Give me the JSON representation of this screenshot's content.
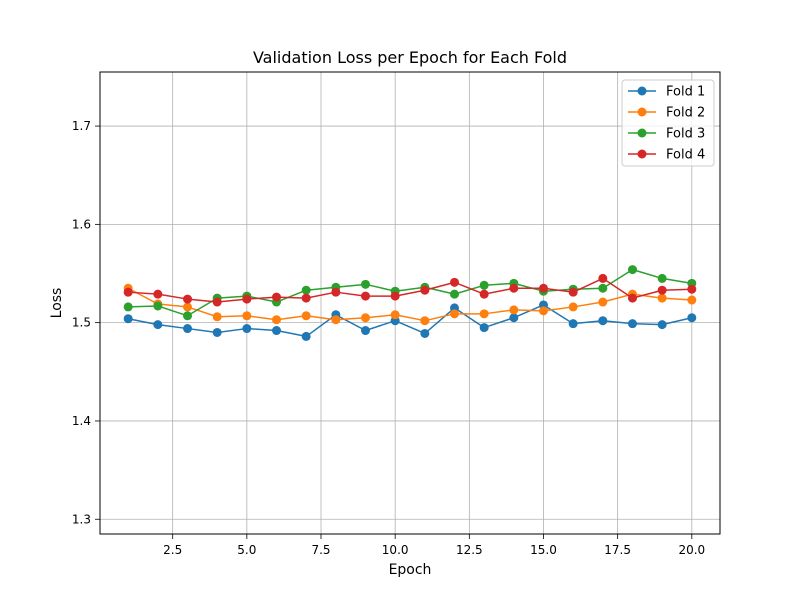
{
  "chart_data": {
    "type": "line",
    "title": "Validation Loss per Epoch for Each Fold",
    "xlabel": "Epoch",
    "ylabel": "Loss",
    "xlim": [
      0.05,
      20.95
    ],
    "ylim": [
      1.285,
      1.755
    ],
    "x_ticks": [
      2.5,
      5.0,
      7.5,
      10.0,
      12.5,
      15.0,
      17.5,
      20.0
    ],
    "x_tick_labels": [
      "2.5",
      "5.0",
      "7.5",
      "10.0",
      "12.5",
      "15.0",
      "17.5",
      "20.0"
    ],
    "y_ticks": [
      1.3,
      1.4,
      1.5,
      1.6,
      1.7
    ],
    "y_tick_labels": [
      "1.3",
      "1.4",
      "1.5",
      "1.6",
      "1.7"
    ],
    "grid": true,
    "legend_position": "top-right",
    "x": [
      1,
      2,
      3,
      4,
      5,
      6,
      7,
      8,
      9,
      10,
      11,
      12,
      13,
      14,
      15,
      16,
      17,
      18,
      19,
      20
    ],
    "series": [
      {
        "name": "Fold 1",
        "color": "#1f77b4",
        "values": [
          1.504,
          1.498,
          1.494,
          1.49,
          1.494,
          1.492,
          1.486,
          1.508,
          1.492,
          1.502,
          1.489,
          1.515,
          1.495,
          1.505,
          1.518,
          1.499,
          1.502,
          1.499,
          1.498,
          1.505
        ]
      },
      {
        "name": "Fold 2",
        "color": "#ff7f0e",
        "values": [
          1.535,
          1.519,
          1.516,
          1.506,
          1.507,
          1.503,
          1.507,
          1.503,
          1.505,
          1.508,
          1.502,
          1.509,
          1.509,
          1.513,
          1.512,
          1.516,
          1.521,
          1.529,
          1.525,
          1.523
        ]
      },
      {
        "name": "Fold 3",
        "color": "#2ca02c",
        "values": [
          1.516,
          1.517,
          1.507,
          1.525,
          1.527,
          1.521,
          1.533,
          1.536,
          1.539,
          1.532,
          1.536,
          1.529,
          1.538,
          1.54,
          1.532,
          1.534,
          1.535,
          1.554,
          1.545,
          1.54
        ]
      },
      {
        "name": "Fold 4",
        "color": "#d62728",
        "values": [
          1.531,
          1.529,
          1.524,
          1.521,
          1.524,
          1.526,
          1.525,
          1.531,
          1.527,
          1.527,
          1.533,
          1.541,
          1.529,
          1.535,
          1.535,
          1.531,
          1.545,
          1.525,
          1.533,
          1.534
        ]
      }
    ]
  }
}
